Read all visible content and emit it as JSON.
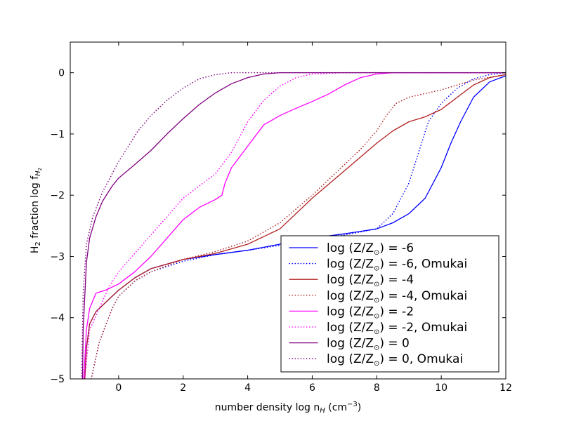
{
  "chart_data": {
    "type": "line",
    "title": "",
    "xlabel": {
      "main": "number density log n",
      "sub": "H",
      "rest": " (cm",
      "sup": "−3",
      "end": ")"
    },
    "ylabel": {
      "a": "H",
      "a_sub": "2",
      "b": " fraction log f",
      "b_sub": "H",
      "b_subsub": "2"
    },
    "xlim": [
      -1.5,
      12
    ],
    "ylim": [
      -5,
      0.5
    ],
    "xticks": [
      0,
      2,
      4,
      6,
      8,
      10,
      12
    ],
    "xtick_labels": [
      "0",
      "2",
      "4",
      "6",
      "8",
      "10",
      "12"
    ],
    "yticks": [
      0,
      -1,
      -2,
      -3,
      -4,
      -5
    ],
    "ytick_labels": [
      "0",
      "−1",
      "−2",
      "−3",
      "−4",
      "−5"
    ],
    "grid": false,
    "legend_position": "lower-right",
    "series": [
      {
        "name": "log (Z/Z☉) = -6",
        "color": "#0000ff",
        "style": "solid",
        "x": [
          -1.05,
          -1.0,
          -0.9,
          -0.7,
          -0.3,
          0,
          0.5,
          1,
          2,
          3,
          4,
          5,
          6,
          7,
          8,
          8.5,
          9,
          9.5,
          10,
          10.3,
          10.6,
          11,
          11.5,
          12
        ],
        "y": [
          -5,
          -4.5,
          -4.1,
          -3.9,
          -3.7,
          -3.55,
          -3.35,
          -3.2,
          -3.05,
          -2.97,
          -2.9,
          -2.8,
          -2.7,
          -2.63,
          -2.55,
          -2.45,
          -2.3,
          -2.05,
          -1.55,
          -1.15,
          -0.8,
          -0.4,
          -0.15,
          -0.05
        ]
      },
      {
        "name": "log (Z/Z☉) = -6, Omukai",
        "color": "#0000ff",
        "style": "dotted",
        "x": [
          -0.85,
          -0.6,
          -0.2,
          0,
          0.5,
          1,
          2,
          3,
          4,
          5,
          6,
          7,
          8,
          8.5,
          9,
          9.3,
          9.6,
          10,
          10.5,
          11,
          11.5,
          12
        ],
        "y": [
          -5,
          -4.4,
          -3.85,
          -3.65,
          -3.4,
          -3.25,
          -3.08,
          -2.97,
          -2.9,
          -2.82,
          -2.72,
          -2.65,
          -2.55,
          -2.3,
          -1.8,
          -1.3,
          -0.8,
          -0.5,
          -0.25,
          -0.1,
          -0.03,
          0
        ]
      },
      {
        "name": "log (Z/Z☉) = -4",
        "color": "#b22222",
        "style": "solid",
        "x": [
          -1.05,
          -1.0,
          -0.9,
          -0.7,
          -0.3,
          0,
          0.5,
          1,
          2,
          3,
          4,
          5,
          6,
          7,
          8,
          8.5,
          9,
          9.5,
          10,
          10.5,
          11,
          11.5,
          12
        ],
        "y": [
          -5,
          -4.5,
          -4.1,
          -3.9,
          -3.7,
          -3.55,
          -3.35,
          -3.2,
          -3.05,
          -2.95,
          -2.8,
          -2.55,
          -2.05,
          -1.6,
          -1.15,
          -0.95,
          -0.8,
          -0.72,
          -0.6,
          -0.4,
          -0.2,
          -0.08,
          -0.03
        ]
      },
      {
        "name": "log (Z/Z☉) = -4, Omukai",
        "color": "#b22222",
        "style": "dotted",
        "x": [
          -0.85,
          -0.6,
          -0.2,
          0,
          0.5,
          1,
          2,
          3,
          4,
          5,
          6,
          7,
          7.5,
          8,
          8.3,
          8.6,
          9,
          10,
          11,
          12
        ],
        "y": [
          -5,
          -4.4,
          -3.85,
          -3.65,
          -3.4,
          -3.25,
          -3.05,
          -2.92,
          -2.75,
          -2.45,
          -2.0,
          -1.5,
          -1.25,
          -0.95,
          -0.7,
          -0.5,
          -0.4,
          -0.28,
          -0.12,
          -0.03
        ]
      },
      {
        "name": "log (Z/Z☉) = -2",
        "color": "#ff00ff",
        "style": "solid",
        "x": [
          -1.08,
          -1.0,
          -0.9,
          -0.7,
          -0.4,
          0,
          0.5,
          1,
          1.5,
          2,
          2.5,
          3,
          3.2,
          3.3,
          3.5,
          4,
          4.5,
          5,
          5.5,
          6,
          6.5,
          7,
          7.5,
          8,
          8.5,
          9,
          10,
          12
        ],
        "y": [
          -5,
          -4.2,
          -3.85,
          -3.6,
          -3.55,
          -3.45,
          -3.25,
          -3.0,
          -2.7,
          -2.4,
          -2.2,
          -2.07,
          -2.0,
          -1.8,
          -1.55,
          -1.2,
          -0.85,
          -0.7,
          -0.58,
          -0.47,
          -0.35,
          -0.2,
          -0.08,
          -0.02,
          0,
          0,
          0,
          0
        ]
      },
      {
        "name": "log (Z/Z☉) = -2, Omukai",
        "color": "#ff00ff",
        "style": "dotted",
        "x": [
          -1.05,
          -0.9,
          -0.6,
          -0.3,
          0,
          0.5,
          1,
          1.5,
          2,
          2.5,
          3,
          3.5,
          4,
          4.5,
          5,
          5.5,
          6,
          7,
          8,
          12
        ],
        "y": [
          -5,
          -4.2,
          -3.85,
          -3.5,
          -3.25,
          -2.95,
          -2.65,
          -2.35,
          -2.05,
          -1.85,
          -1.65,
          -1.3,
          -0.8,
          -0.45,
          -0.22,
          -0.08,
          -0.02,
          0,
          0,
          0
        ]
      },
      {
        "name": "log (Z/Z☉) = 0",
        "color": "#800080",
        "style": "solid",
        "x": [
          -1.12,
          -1.1,
          -1.0,
          -0.9,
          -0.7,
          -0.5,
          -0.2,
          0,
          0.5,
          1,
          1.5,
          2,
          2.5,
          3,
          3.5,
          4,
          4.5,
          5,
          5.5,
          6,
          8,
          12
        ],
        "y": [
          -5,
          -4.2,
          -3.1,
          -2.7,
          -2.35,
          -2.1,
          -1.85,
          -1.72,
          -1.5,
          -1.27,
          -1.0,
          -0.75,
          -0.52,
          -0.33,
          -0.18,
          -0.08,
          -0.02,
          0,
          0,
          0,
          0,
          0
        ]
      },
      {
        "name": "log (Z/Z☉) = 0, Omukai",
        "color": "#800080",
        "style": "dotted",
        "x": [
          -1.15,
          -1.1,
          -1.0,
          -0.8,
          -0.5,
          -0.2,
          0,
          0.3,
          0.6,
          1,
          1.5,
          2,
          2.5,
          3,
          3.5,
          4,
          5,
          12
        ],
        "y": [
          -5,
          -3.6,
          -2.8,
          -2.35,
          -1.95,
          -1.65,
          -1.45,
          -1.2,
          -0.95,
          -0.7,
          -0.45,
          -0.25,
          -0.1,
          -0.03,
          0,
          0,
          0,
          0
        ]
      }
    ]
  },
  "legend": {
    "entries": [
      {
        "label_pre": "log (Z/Z",
        "label_sym": "⊙",
        "label_post": ") = -6"
      },
      {
        "label_pre": "log (Z/Z",
        "label_sym": "⊙",
        "label_post": ") = -6, Omukai"
      },
      {
        "label_pre": "log (Z/Z",
        "label_sym": "⊙",
        "label_post": ") = -4"
      },
      {
        "label_pre": "log (Z/Z",
        "label_sym": "⊙",
        "label_post": ") = -4, Omukai"
      },
      {
        "label_pre": "log (Z/Z",
        "label_sym": "⊙",
        "label_post": ") = -2"
      },
      {
        "label_pre": "log (Z/Z",
        "label_sym": "⊙",
        "label_post": ") = -2, Omukai"
      },
      {
        "label_pre": "log (Z/Z",
        "label_sym": "⊙",
        "label_post": ") = 0"
      },
      {
        "label_pre": "log (Z/Z",
        "label_sym": "⊙",
        "label_post": ") = 0, Omukai"
      }
    ]
  }
}
